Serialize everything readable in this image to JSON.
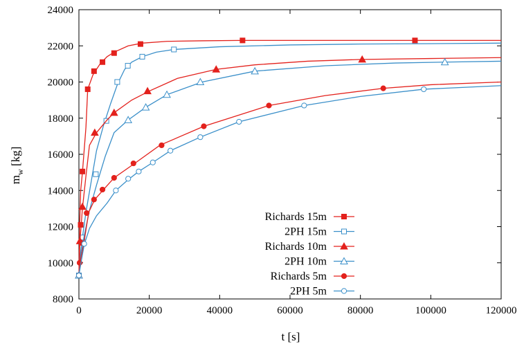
{
  "chart_data": {
    "type": "line",
    "title": "",
    "xlabel": "t [s]",
    "ylabel_main": "m",
    "ylabel_sub": "w",
    "ylabel_unit": " [kg]",
    "xlim": [
      0,
      120000
    ],
    "ylim": [
      8000,
      24000
    ],
    "xticks": [
      0,
      20000,
      40000,
      60000,
      80000,
      100000,
      120000
    ],
    "yticks": [
      8000,
      10000,
      12000,
      14000,
      16000,
      18000,
      20000,
      22000,
      24000
    ],
    "grid": false,
    "legend_position": "bottom-center",
    "series": [
      {
        "name": "Richards 15m",
        "color": "#e3211c",
        "marker": "square-filled",
        "x": [
          0,
          200,
          500,
          1000,
          2000,
          2500,
          4000,
          6000,
          8000,
          10000,
          14000,
          18000,
          25000,
          35000,
          46000,
          60000,
          80000,
          95500,
          120000
        ],
        "y": [
          9300,
          12000,
          14000,
          15000,
          17500,
          19600,
          20400,
          21000,
          21400,
          21650,
          22000,
          22150,
          22250,
          22280,
          22300,
          22300,
          22300,
          22300,
          22300
        ],
        "marker_x": [
          0,
          500,
          1000,
          2500,
          4300,
          6700,
          10000,
          17500,
          46500,
          95500
        ],
        "marker_y": [
          9300,
          12100,
          15050,
          19600,
          20600,
          21100,
          21600,
          22100,
          22300,
          22300
        ]
      },
      {
        "name": "2PH 15m",
        "color": "#3a8fc9",
        "marker": "square-open",
        "x": [
          0,
          300,
          1000,
          2000,
          3500,
          5000,
          7000,
          9000,
          11000,
          13000,
          15000,
          18000,
          22000,
          27000,
          40000,
          60000,
          80000,
          100000,
          120000
        ],
        "y": [
          9300,
          10300,
          11400,
          12800,
          14500,
          16200,
          17600,
          18800,
          19900,
          20700,
          21100,
          21400,
          21650,
          21800,
          21950,
          22050,
          22100,
          22120,
          22150
        ],
        "marker_x": [
          0,
          1000,
          4800,
          7800,
          10900,
          13900,
          18000,
          27000
        ],
        "marker_y": [
          9300,
          11400,
          14900,
          17850,
          20000,
          20900,
          21400,
          21800
        ]
      },
      {
        "name": "Richards 10m",
        "color": "#e3211c",
        "marker": "triangle-filled",
        "x": [
          0,
          300,
          1000,
          2000,
          3000,
          5000,
          8000,
          10000,
          15000,
          20000,
          28000,
          39000,
          50000,
          65000,
          80500,
          100000,
          120000
        ],
        "y": [
          9300,
          11200,
          13000,
          14800,
          16500,
          17200,
          17900,
          18300,
          19000,
          19500,
          20200,
          20700,
          20950,
          21150,
          21250,
          21300,
          21350
        ],
        "marker_x": [
          0,
          300,
          1000,
          4500,
          10000,
          19500,
          39000,
          80500
        ],
        "marker_y": [
          9300,
          11200,
          13100,
          17200,
          18300,
          19500,
          20700,
          21250
        ]
      },
      {
        "name": "2PH 10m",
        "color": "#3a8fc9",
        "marker": "triangle-open",
        "x": [
          0,
          500,
          1500,
          3000,
          5000,
          7500,
          10000,
          14000,
          19000,
          25000,
          35000,
          50000,
          70000,
          90000,
          104000,
          120000
        ],
        "y": [
          9300,
          10300,
          11500,
          12900,
          14300,
          15900,
          17200,
          17900,
          18600,
          19300,
          20000,
          20600,
          20900,
          21050,
          21100,
          21150
        ],
        "marker_x": [
          0,
          14000,
          19000,
          25000,
          34500,
          50000,
          104000
        ],
        "marker_y": [
          9300,
          17900,
          18600,
          19300,
          20000,
          20600,
          21100
        ]
      },
      {
        "name": "Richards 5m",
        "color": "#e3211c",
        "marker": "circle-filled",
        "x": [
          0,
          500,
          1500,
          2800,
          4500,
          7000,
          10000,
          15500,
          23000,
          35500,
          54000,
          70000,
          86500,
          100000,
          120000
        ],
        "y": [
          9300,
          10200,
          11200,
          12800,
          13500,
          14050,
          14700,
          15450,
          16500,
          17550,
          18700,
          19250,
          19650,
          19850,
          20000
        ],
        "marker_x": [
          0,
          200,
          700,
          2200,
          4300,
          6700,
          10000,
          15500,
          23500,
          35500,
          54000,
          86500
        ],
        "marker_y": [
          9300,
          10000,
          11100,
          12750,
          13500,
          14050,
          14700,
          15500,
          16500,
          17550,
          18700,
          19650
        ]
      },
      {
        "name": "2PH 5m",
        "color": "#3a8fc9",
        "marker": "circle-open",
        "x": [
          0,
          500,
          1500,
          3000,
          5000,
          8000,
          10500,
          14000,
          17000,
          21000,
          26000,
          34500,
          45500,
          64000,
          80000,
          98000,
          120000
        ],
        "y": [
          9300,
          9900,
          11000,
          11900,
          12600,
          13300,
          14000,
          14600,
          15050,
          15550,
          16200,
          16950,
          17800,
          18700,
          19200,
          19600,
          19800
        ],
        "marker_x": [
          0,
          1500,
          10500,
          14000,
          17000,
          21000,
          26000,
          34500,
          45500,
          64000,
          98000
        ],
        "marker_y": [
          9300,
          11050,
          14000,
          14650,
          15050,
          15550,
          16200,
          16950,
          17800,
          18700,
          19600
        ]
      }
    ]
  }
}
